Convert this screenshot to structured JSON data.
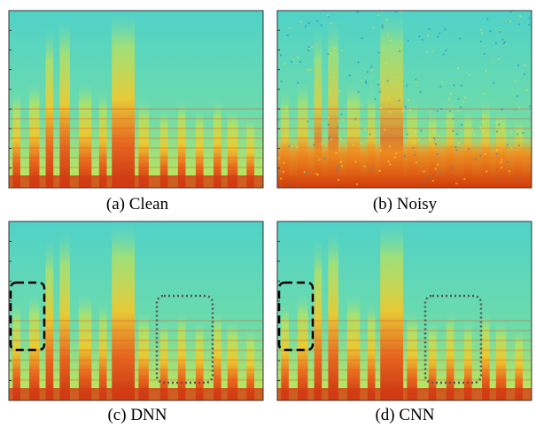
{
  "panels": [
    {
      "caption": "(a) Clean"
    },
    {
      "caption": "(b) Noisy"
    },
    {
      "caption": "(c) DNN"
    },
    {
      "caption": "(d) CNN"
    }
  ]
}
